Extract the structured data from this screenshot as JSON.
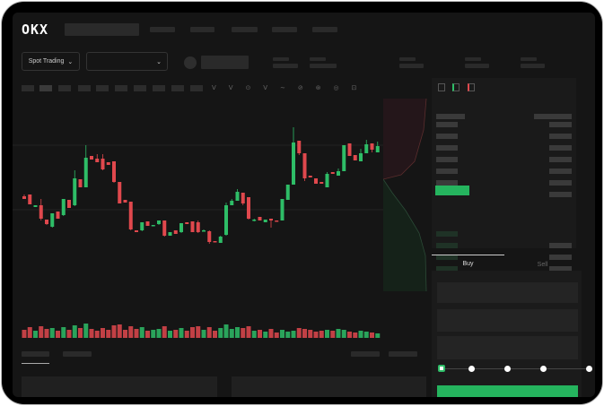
{
  "header": {
    "brand": "OKX"
  },
  "toolbar": {
    "mode_label": "Spot Trading",
    "pair_dropdown": ""
  },
  "trade": {
    "tabs": [
      {
        "label": "Buy",
        "active": true
      },
      {
        "label": "Sell",
        "active": false
      }
    ],
    "slider_percent": 0
  },
  "colors": {
    "up": "#2ebd67",
    "down": "#e0484d",
    "bg": "#151515",
    "accent": "#25b45e"
  },
  "chart_data": {
    "type": "candlestick",
    "candles": [
      [
        65,
        62,
        67,
        62
      ],
      [
        67,
        56,
        67,
        56
      ],
      [
        53,
        55,
        55,
        53
      ],
      [
        55,
        40,
        62,
        38
      ],
      [
        39,
        34,
        39,
        33
      ],
      [
        31,
        46,
        46,
        30
      ],
      [
        48,
        40,
        48,
        40
      ],
      [
        44,
        62,
        62,
        43
      ],
      [
        61,
        52,
        61,
        52
      ],
      [
        55,
        85,
        94,
        54
      ],
      [
        84,
        75,
        84,
        75
      ],
      [
        75,
        108,
        122,
        75
      ],
      [
        110,
        106,
        110,
        106
      ],
      [
        107,
        103,
        112,
        103
      ],
      [
        107,
        95,
        112,
        94
      ],
      [
        103,
        100,
        103,
        100
      ],
      [
        104,
        81,
        104,
        80
      ],
      [
        81,
        57,
        81,
        57
      ],
      [
        61,
        58,
        61,
        58
      ],
      [
        59,
        28,
        59,
        27
      ],
      [
        27,
        25,
        27,
        25
      ],
      [
        27,
        36,
        36,
        26
      ],
      [
        37,
        32,
        37,
        32
      ],
      [
        32,
        33,
        33,
        32
      ],
      [
        34,
        38,
        38,
        33
      ],
      [
        38,
        21,
        38,
        20
      ],
      [
        21,
        25,
        25,
        21
      ],
      [
        27,
        23,
        27,
        23
      ],
      [
        25,
        35,
        35,
        24
      ],
      [
        36,
        34,
        36,
        34
      ],
      [
        37,
        25,
        37,
        25
      ],
      [
        36,
        25,
        38,
        24
      ],
      [
        27,
        27,
        28,
        26
      ],
      [
        26,
        14,
        27,
        12
      ],
      [
        15,
        14,
        15,
        14
      ],
      [
        13,
        20,
        21,
        13
      ],
      [
        22,
        55,
        58,
        21
      ],
      [
        55,
        60,
        62,
        55
      ],
      [
        60,
        70,
        73,
        60
      ],
      [
        69,
        57,
        69,
        55
      ],
      [
        64,
        40,
        64,
        39
      ],
      [
        38,
        39,
        40,
        37
      ],
      [
        42,
        38,
        42,
        38
      ],
      [
        36,
        39,
        39,
        36
      ],
      [
        40,
        38,
        40,
        30
      ],
      [
        38,
        37,
        38,
        37
      ],
      [
        38,
        62,
        62,
        38
      ],
      [
        61,
        78,
        78,
        61
      ],
      [
        78,
        125,
        142,
        78
      ],
      [
        127,
        113,
        127,
        111
      ],
      [
        113,
        85,
        113,
        82
      ],
      [
        88,
        86,
        88,
        86
      ],
      [
        85,
        79,
        85,
        79
      ],
      [
        81,
        79,
        81,
        79
      ],
      [
        75,
        90,
        92,
        75
      ],
      [
        92,
        90,
        92,
        90
      ],
      [
        88,
        93,
        96,
        88
      ],
      [
        93,
        122,
        122,
        93
      ],
      [
        124,
        110,
        124,
        110
      ],
      [
        111,
        105,
        111,
        105
      ],
      [
        104,
        113,
        118,
        104
      ],
      [
        113,
        123,
        128,
        113
      ],
      [
        124,
        117,
        124,
        114
      ],
      [
        114,
        121,
        126,
        114
      ]
    ],
    "volume": [
      9,
      12,
      8,
      13,
      10,
      11,
      8,
      12,
      9,
      14,
      11,
      16,
      10,
      8,
      11,
      9,
      14,
      15,
      9,
      13,
      10,
      12,
      8,
      9,
      10,
      13,
      8,
      9,
      11,
      8,
      12,
      13,
      9,
      12,
      8,
      11,
      15,
      10,
      12,
      11,
      13,
      8,
      9,
      7,
      10,
      6,
      9,
      7,
      8,
      11,
      10,
      9,
      7,
      8,
      9,
      8,
      10,
      9,
      7,
      6,
      8,
      7,
      6,
      5
    ],
    "xlabel": "",
    "ylabel": ""
  }
}
